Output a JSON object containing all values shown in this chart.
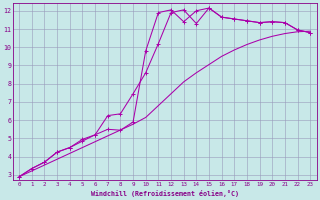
{
  "xlabel": "Windchill (Refroidissement éolien,°C)",
  "bg_color": "#c8e8e8",
  "grid_color": "#9999bb",
  "line_color": "#aa00aa",
  "xmin": 0,
  "xmax": 23,
  "ymin": 3,
  "ymax": 12,
  "line1_x": [
    0,
    1,
    2,
    3,
    4,
    5,
    6,
    7,
    8,
    9,
    10,
    11,
    12,
    13,
    14,
    15,
    16,
    17,
    18,
    19,
    20,
    21,
    22,
    23
  ],
  "line1_y": [
    2.9,
    3.35,
    3.7,
    4.25,
    4.5,
    4.85,
    5.2,
    5.5,
    5.45,
    5.9,
    9.8,
    11.9,
    12.05,
    11.4,
    12.0,
    12.15,
    11.65,
    11.55,
    11.45,
    11.35,
    11.4,
    11.35,
    10.95,
    10.8
  ],
  "line2_x": [
    0,
    1,
    2,
    3,
    4,
    5,
    6,
    7,
    8,
    9,
    10,
    11,
    12,
    13,
    14,
    15,
    16,
    17,
    18,
    19,
    20,
    21,
    22,
    23
  ],
  "line2_y": [
    2.9,
    3.35,
    3.7,
    4.25,
    4.5,
    4.95,
    5.2,
    6.25,
    6.35,
    7.45,
    8.6,
    10.2,
    11.9,
    12.05,
    11.3,
    12.15,
    11.65,
    11.55,
    11.45,
    11.35,
    11.4,
    11.35,
    10.95,
    10.8
  ],
  "line3_x": [
    0,
    1,
    2,
    3,
    4,
    5,
    6,
    7,
    8,
    9,
    10,
    11,
    12,
    13,
    14,
    15,
    16,
    17,
    18,
    19,
    20,
    21,
    22,
    23
  ],
  "line3_y": [
    2.9,
    3.22,
    3.54,
    3.86,
    4.18,
    4.5,
    4.82,
    5.14,
    5.46,
    5.78,
    6.15,
    6.8,
    7.45,
    8.1,
    8.6,
    9.05,
    9.5,
    9.85,
    10.15,
    10.4,
    10.6,
    10.75,
    10.85,
    10.88
  ],
  "yticks": [
    3,
    4,
    5,
    6,
    7,
    8,
    9,
    10,
    11,
    12
  ],
  "xtick_labels": [
    "0",
    "1",
    "2",
    "3",
    "4",
    "5",
    "6",
    "7",
    "8",
    "9",
    "10",
    "11",
    "12",
    "13",
    "14",
    "15",
    "16",
    "17",
    "18",
    "19",
    "20",
    "21",
    "22",
    "23"
  ],
  "font_color": "#880088",
  "font_name": "monospace",
  "marker_size": 2.5,
  "line_width": 0.75
}
